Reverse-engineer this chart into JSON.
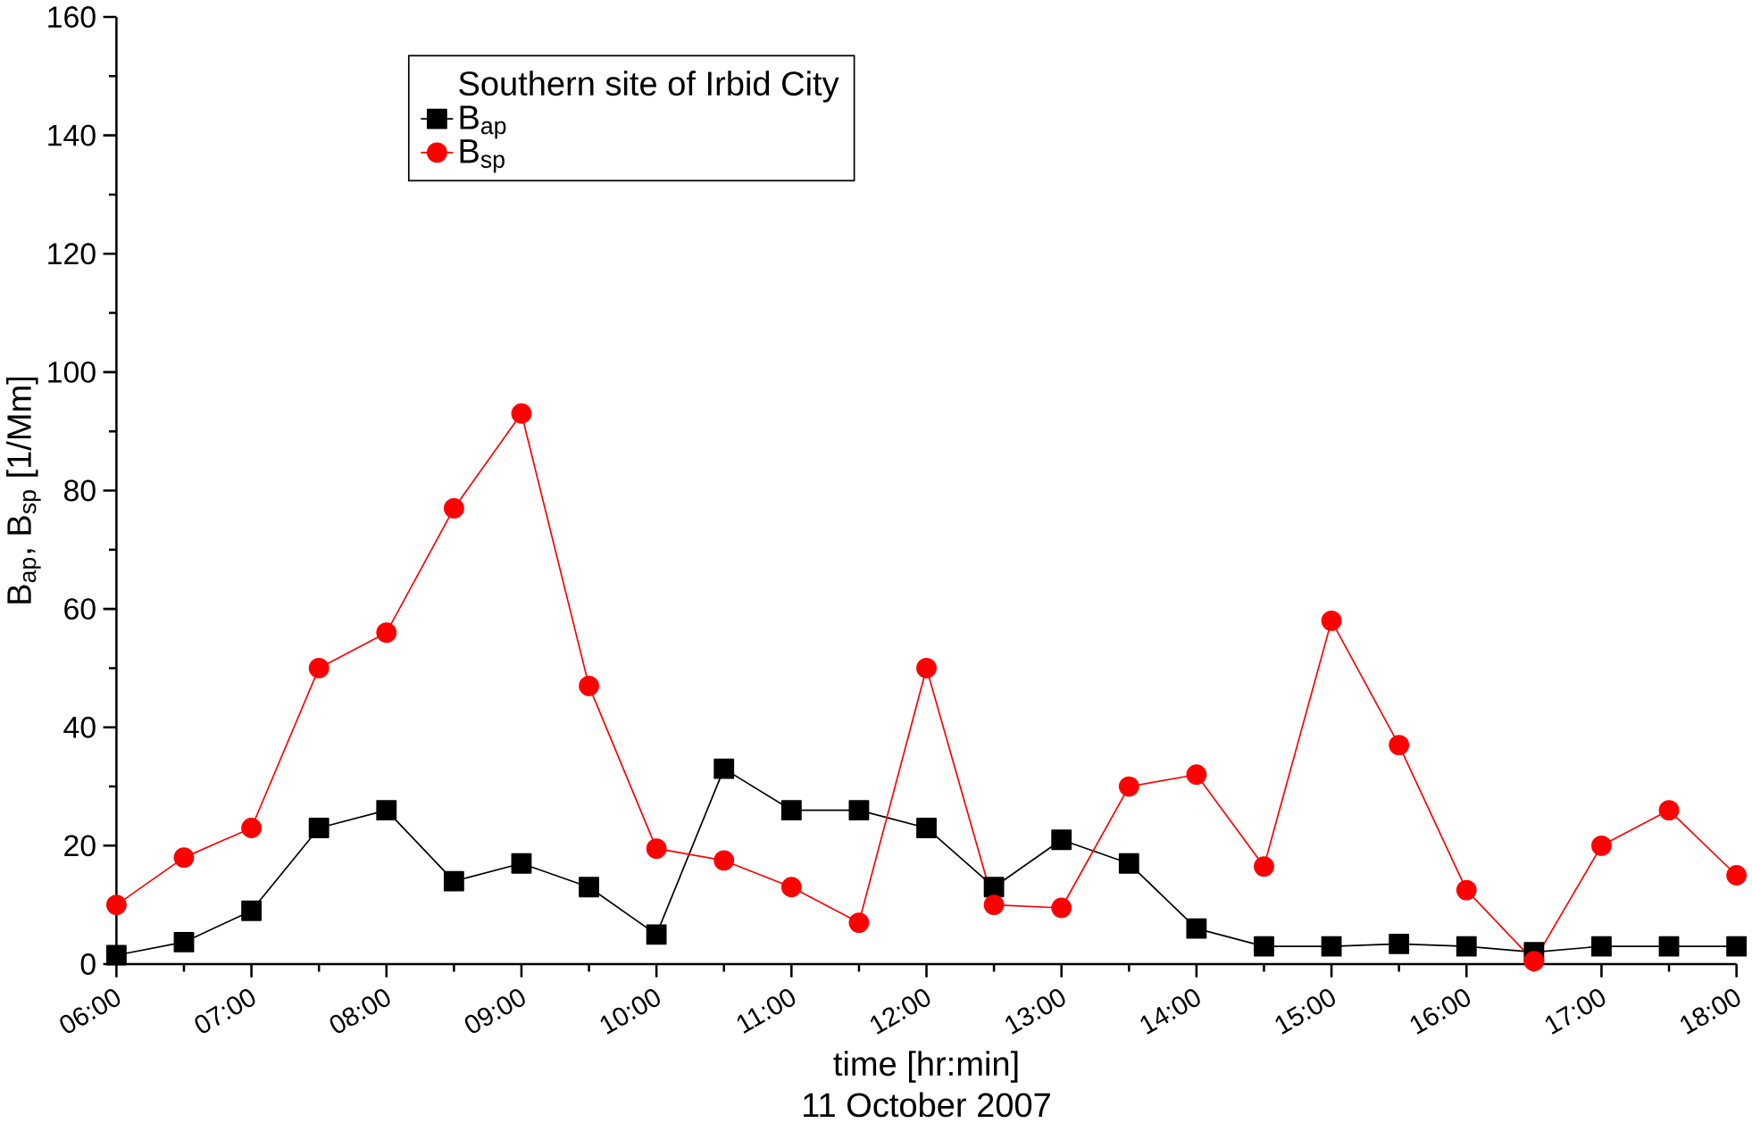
{
  "chart_data": {
    "type": "line",
    "xlabel": "time [hr:min]",
    "ylabel": "B$_{ap}$, B$_{sp}$ [1/Mm]",
    "legend_title": "Southern site of Irbid City",
    "annotations": [
      "11 October 2007"
    ],
    "x": [
      6,
      6.5,
      7,
      7.5,
      8,
      8.5,
      9,
      9.5,
      10,
      10.5,
      11,
      11.5,
      12,
      12.5,
      13,
      13.5,
      14,
      14.5,
      15,
      15.5,
      16,
      16.5,
      17,
      17.5,
      18
    ],
    "series": [
      {
        "name": "B$_{ap}$",
        "color": "#000000",
        "marker": "square",
        "values": [
          1.5,
          3.7,
          9,
          23,
          26,
          14,
          17,
          13,
          5,
          33,
          26,
          26,
          23,
          13,
          21,
          17,
          6,
          3,
          3,
          3.4,
          3,
          2,
          3,
          3,
          3
        ]
      },
      {
        "name": "B$_{sp}$",
        "color": "#ff0000",
        "marker": "circle",
        "values": [
          10,
          18,
          23,
          50,
          56,
          77,
          93,
          47,
          19.5,
          17.5,
          13,
          7,
          50,
          10,
          9.5,
          30,
          32,
          16.5,
          58,
          37,
          12.5,
          0.5,
          20,
          26,
          15
        ]
      }
    ],
    "xlim": [
      6,
      18
    ],
    "ylim": [
      0,
      160
    ],
    "xticks": [
      {
        "value": 6,
        "label": "06:00"
      },
      {
        "value": 7,
        "label": "07:00"
      },
      {
        "value": 8,
        "label": "08:00"
      },
      {
        "value": 9,
        "label": "09:00"
      },
      {
        "value": 10,
        "label": "10:00"
      },
      {
        "value": 11,
        "label": "11:00"
      },
      {
        "value": 12,
        "label": "12:00"
      },
      {
        "value": 13,
        "label": "13:00"
      },
      {
        "value": 14,
        "label": "14:00"
      },
      {
        "value": 15,
        "label": "15:00"
      },
      {
        "value": 16,
        "label": "16:00"
      },
      {
        "value": 17,
        "label": "17:00"
      },
      {
        "value": 18,
        "label": "18:00"
      }
    ],
    "yticks": [
      0,
      20,
      40,
      60,
      80,
      100,
      120,
      140,
      160
    ],
    "grid": false,
    "legend": "top",
    "line_style": "solid"
  }
}
